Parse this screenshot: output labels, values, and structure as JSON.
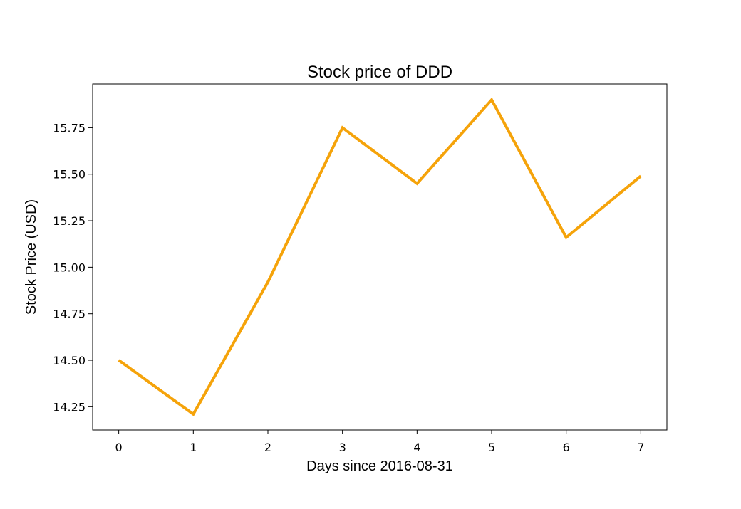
{
  "chart_data": {
    "type": "line",
    "title": "Stock price of DDD",
    "xlabel": "Days since 2016-08-31",
    "ylabel": "Stock Price (USD)",
    "x": [
      0,
      1,
      2,
      3,
      4,
      5,
      6,
      7
    ],
    "series": [
      {
        "values": [
          14.5,
          14.21,
          14.92,
          15.75,
          15.45,
          15.9,
          15.16,
          15.49
        ],
        "color": "#f5a30a"
      }
    ],
    "xlim": [
      -0.35,
      7.35
    ],
    "ylim": [
      14.125,
      15.985
    ],
    "xticks": [
      0,
      1,
      2,
      3,
      4,
      5,
      6,
      7
    ],
    "xtick_labels": [
      "0",
      "1",
      "2",
      "3",
      "4",
      "5",
      "6",
      "7"
    ],
    "yticks": [
      14.25,
      14.5,
      14.75,
      15.0,
      15.25,
      15.5,
      15.75
    ],
    "ytick_labels": [
      "14.25",
      "14.50",
      "14.75",
      "15.00",
      "15.25",
      "15.50",
      "15.75"
    ],
    "grid": false,
    "legend": "none"
  }
}
